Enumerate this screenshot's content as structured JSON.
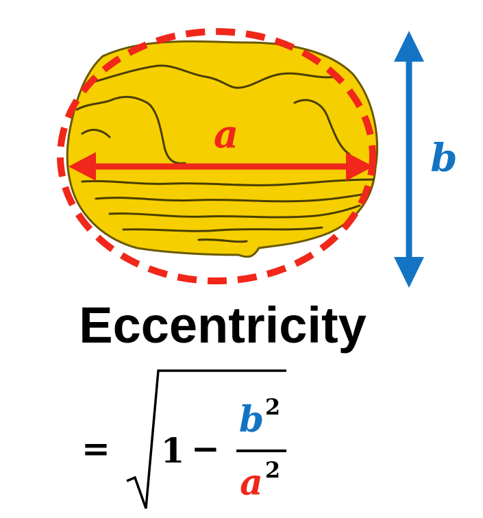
{
  "diagram": {
    "major_axis_label": "a",
    "minor_axis_label": "b",
    "title": "Eccentricity",
    "formula": {
      "equals": "=",
      "one": "1",
      "minus": "−",
      "numerator_base": "b",
      "numerator_exp": "2",
      "denominator_base": "a",
      "denominator_exp": "2"
    },
    "colors": {
      "shape_fill": "#F5CF00",
      "shape_outline": "#3A3000",
      "ellipse_dash": "#F0271A",
      "major_axis": "#F0271A",
      "minor_axis": "#1474C4",
      "title_text": "#000000"
    }
  }
}
